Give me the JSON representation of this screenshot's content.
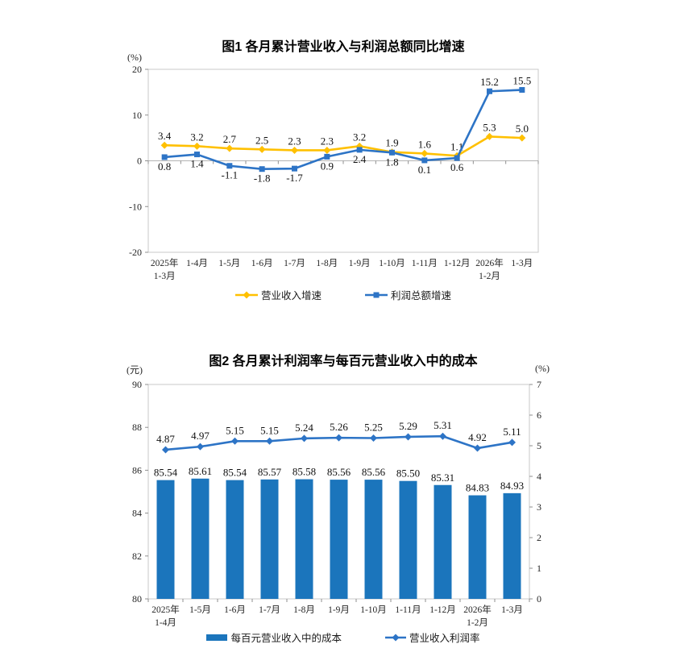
{
  "chart_data": [
    {
      "type": "line",
      "title": "图1  各月累计营业收入与利润总额同比增速",
      "unit_left": "(%)",
      "categories": [
        "2025年\n1-3月",
        "1-4月",
        "1-5月",
        "1-6月",
        "1-7月",
        "1-8月",
        "1-9月",
        "1-10月",
        "1-11月",
        "1-12月",
        "2026年\n1-2月",
        "1-3月"
      ],
      "ylim": [
        -20,
        20
      ],
      "yticks": [
        20,
        10,
        0,
        -10,
        -20
      ],
      "grid": false,
      "legend_position": "bottom",
      "label_decimals": 1,
      "series": [
        {
          "name": "营业收入增速",
          "color": "#FFC000",
          "marker": "diamond",
          "values": [
            3.4,
            3.2,
            2.7,
            2.5,
            2.3,
            2.3,
            3.2,
            1.9,
            1.6,
            1.1,
            5.3,
            5.0
          ],
          "label_positions": [
            "above",
            "above",
            "above",
            "above",
            "above",
            "above",
            "above",
            "above",
            "above",
            "above",
            "above",
            "above"
          ]
        },
        {
          "name": "利润总额增速",
          "color": "#2D74C6",
          "marker": "square",
          "values": [
            0.8,
            1.4,
            -1.1,
            -1.8,
            -1.7,
            0.9,
            2.4,
            1.8,
            0.1,
            0.6,
            15.2,
            15.5
          ],
          "label_positions": [
            "below",
            "below",
            "below",
            "below",
            "below",
            "below",
            "below",
            "below",
            "below",
            "below",
            "above",
            "above"
          ]
        }
      ]
    },
    {
      "type": "bar+line",
      "title": "图2  各月累计利润率与每百元营业收入中的成本",
      "unit_left": "(元)",
      "unit_right": "(%)",
      "categories": [
        "2025年\n1-4月",
        "1-5月",
        "1-6月",
        "1-7月",
        "1-8月",
        "1-9月",
        "1-10月",
        "1-11月",
        "1-12月",
        "2026年\n1-2月",
        "1-3月"
      ],
      "left_ylim": [
        80,
        90
      ],
      "left_yticks": [
        90,
        88,
        86,
        84,
        82,
        80
      ],
      "right_ylim": [
        0,
        7
      ],
      "right_yticks": [
        7,
        6,
        5,
        4,
        3,
        2,
        1,
        0
      ],
      "grid": false,
      "legend_position": "bottom",
      "label_decimals": 2,
      "bar_series": {
        "name": "每百元营业收入中的成本",
        "color": "#1B75BC",
        "axis": "left",
        "values": [
          85.54,
          85.61,
          85.54,
          85.57,
          85.58,
          85.56,
          85.56,
          85.5,
          85.31,
          84.83,
          84.93
        ]
      },
      "line_series": {
        "name": "营业收入利润率",
        "color": "#2D74C6",
        "marker": "diamond",
        "axis": "right",
        "values": [
          4.87,
          4.97,
          5.15,
          5.15,
          5.24,
          5.26,
          5.25,
          5.29,
          5.31,
          4.92,
          5.11
        ]
      }
    }
  ],
  "styles": {
    "border_color": "#c9c9c9",
    "zero_line_color": "#b3b3b3",
    "tick_color": "#8f8f8f",
    "text_color": "#262626",
    "label_color": "#111111"
  }
}
